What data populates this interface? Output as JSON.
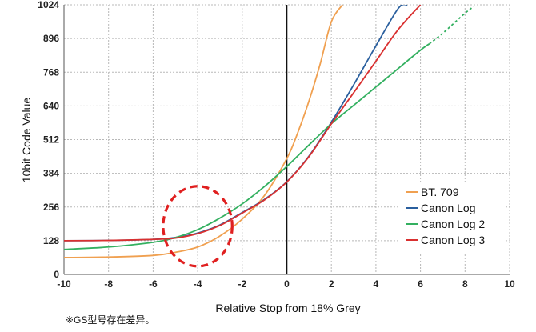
{
  "chart_data": {
    "type": "line",
    "xlabel": "Relative Stop from 18% Grey",
    "ylabel": "10bit Code Value",
    "xlim": [
      -10,
      10
    ],
    "ylim": [
      0,
      1024
    ],
    "x_ticks": [
      -10,
      -8,
      -6,
      -4,
      -2,
      0,
      2,
      4,
      6,
      8,
      10
    ],
    "y_ticks": [
      0,
      128,
      256,
      384,
      512,
      640,
      768,
      896,
      1024
    ],
    "x_tick_labels": [
      "-10",
      "-8",
      "-6",
      "-4",
      "-2",
      "0",
      "2",
      "4",
      "6",
      "8",
      "10"
    ],
    "y_tick_labels": [
      "0",
      "128",
      "256",
      "384",
      "512",
      "640",
      "768",
      "896",
      "1024"
    ],
    "grid": "vertical-and-horizontal dotted",
    "legend_position": "bottom-right",
    "zero_line_x": 0,
    "series": [
      {
        "name": "BT. 709",
        "color": "#f0a050",
        "points": [
          [
            -10,
            64
          ],
          [
            -8,
            66
          ],
          [
            -6,
            72
          ],
          [
            -5,
            84
          ],
          [
            -4,
            104
          ],
          [
            -3,
            146
          ],
          [
            -2,
            210
          ],
          [
            -1,
            300
          ],
          [
            0,
            440
          ],
          [
            0.5,
            540
          ],
          [
            1,
            660
          ],
          [
            1.5,
            800
          ],
          [
            2,
            960
          ],
          [
            2.5,
            1024
          ]
        ]
      },
      {
        "name": "Canon Log",
        "color": "#2a5f9e",
        "points": [
          [
            -10,
            128
          ],
          [
            -8,
            129
          ],
          [
            -6,
            133
          ],
          [
            -5,
            140
          ],
          [
            -4,
            157
          ],
          [
            -3,
            188
          ],
          [
            -2,
            235
          ],
          [
            -1,
            285
          ],
          [
            0,
            352
          ],
          [
            1,
            450
          ],
          [
            2,
            578
          ],
          [
            3,
            720
          ],
          [
            4,
            868
          ],
          [
            5,
            1010
          ],
          [
            5.4,
            1024
          ]
        ]
      },
      {
        "name": "Canon Log 2",
        "color": "#33b060",
        "points": [
          [
            -10,
            95
          ],
          [
            -8,
            104
          ],
          [
            -6,
            122
          ],
          [
            -5,
            140
          ],
          [
            -4,
            170
          ],
          [
            -3,
            214
          ],
          [
            -2,
            268
          ],
          [
            -1,
            334
          ],
          [
            0,
            410
          ],
          [
            1,
            492
          ],
          [
            2,
            572
          ],
          [
            3,
            642
          ],
          [
            4,
            712
          ],
          [
            5,
            782
          ],
          [
            6,
            852
          ],
          [
            6.4,
            876
          ]
        ],
        "dashed_extension": [
          [
            6.4,
            876
          ],
          [
            7,
            916
          ],
          [
            8,
            992
          ],
          [
            8.4,
            1018
          ]
        ]
      },
      {
        "name": "Canon Log 3",
        "color": "#d93030",
        "points": [
          [
            -10,
            128
          ],
          [
            -8,
            129
          ],
          [
            -6,
            133
          ],
          [
            -5,
            138
          ],
          [
            -4,
            155
          ],
          [
            -3,
            186
          ],
          [
            -2,
            233
          ],
          [
            -1,
            283
          ],
          [
            0,
            351
          ],
          [
            1,
            448
          ],
          [
            2,
            572
          ],
          [
            3,
            690
          ],
          [
            4,
            810
          ],
          [
            5,
            930
          ],
          [
            6,
            1024
          ]
        ]
      }
    ],
    "annotations": [
      {
        "type": "dashed-circle",
        "color": "#e02020",
        "center": [
          -4,
          183
        ],
        "radius_x_units": 1.55,
        "radius_y_units": 152
      }
    ]
  },
  "footnote": "※GS型号存在差异。"
}
